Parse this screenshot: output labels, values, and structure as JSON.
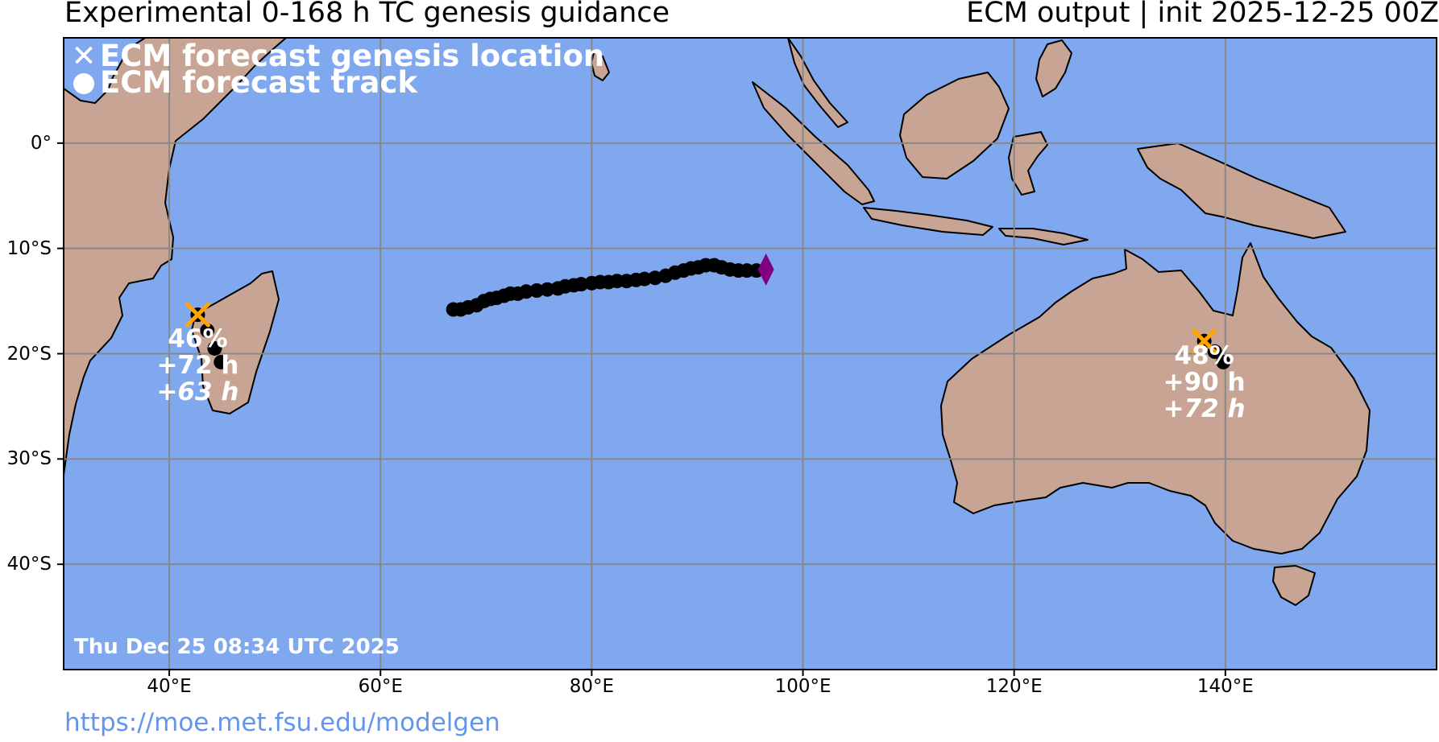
{
  "header": {
    "title_left": "Experimental 0-168 h TC genesis guidance",
    "title_right": "ECM output | init 2025-12-25 00Z"
  },
  "legend": {
    "genesis_label": "ECM forecast genesis location",
    "genesis_icon": "x-mark-icon",
    "track_label": "ECM forecast track",
    "track_icon": "circle-icon"
  },
  "axes": {
    "lon_range": [
      30,
      160
    ],
    "lat_range": [
      -50,
      10
    ],
    "x_ticks": [
      "40°E",
      "60°E",
      "80°E",
      "100°E",
      "120°E",
      "140°E"
    ],
    "x_tick_values": [
      40,
      60,
      80,
      100,
      120,
      140
    ],
    "y_ticks": [
      "0°",
      "10°S",
      "20°S",
      "30°S",
      "40°S"
    ],
    "y_tick_values": [
      0,
      -10,
      -20,
      -30,
      -40
    ],
    "grid": true
  },
  "colors": {
    "ocean": "#80a8ef",
    "land": "#c8a494",
    "genesis_marker": "#ffa500",
    "track": "#000000",
    "current_position": "#800080",
    "grid": "#888888"
  },
  "storms": [
    {
      "genesis": {
        "lon": 42.7,
        "lat": -16.3
      },
      "probability": "46%",
      "lead_time": "+72 h",
      "italic_time": "+63 h",
      "track": [
        [
          42.7,
          -16.3
        ],
        [
          43.6,
          -17.8
        ],
        [
          44.3,
          -19.5
        ],
        [
          44.9,
          -20.8
        ]
      ]
    },
    {
      "genesis": {
        "lon": 138.0,
        "lat": -18.8
      },
      "probability": "48%",
      "lead_time": "+90 h",
      "italic_time": "+72 h",
      "track": [
        [
          138.0,
          -18.8
        ],
        [
          139.0,
          -19.8
        ],
        [
          139.8,
          -20.8
        ]
      ]
    }
  ],
  "active_track": {
    "current_position": {
      "lon": 96.5,
      "lat": -12.0
    },
    "points": [
      [
        66.9,
        -15.8
      ],
      [
        67.6,
        -15.8
      ],
      [
        68.3,
        -15.6
      ],
      [
        69.1,
        -15.4
      ],
      [
        69.8,
        -15.0
      ],
      [
        70.4,
        -14.8
      ],
      [
        71.0,
        -14.7
      ],
      [
        71.7,
        -14.5
      ],
      [
        72.3,
        -14.3
      ],
      [
        73.0,
        -14.3
      ],
      [
        73.8,
        -14.1
      ],
      [
        74.8,
        -14.0
      ],
      [
        75.8,
        -13.9
      ],
      [
        76.8,
        -13.8
      ],
      [
        77.5,
        -13.6
      ],
      [
        78.3,
        -13.5
      ],
      [
        79.0,
        -13.4
      ],
      [
        80.0,
        -13.3
      ],
      [
        80.8,
        -13.2
      ],
      [
        81.6,
        -13.2
      ],
      [
        82.4,
        -13.1
      ],
      [
        83.3,
        -13.1
      ],
      [
        84.2,
        -13.0
      ],
      [
        85.0,
        -12.9
      ],
      [
        86.0,
        -12.8
      ],
      [
        87.0,
        -12.6
      ],
      [
        87.9,
        -12.3
      ],
      [
        88.7,
        -12.1
      ],
      [
        89.4,
        -11.9
      ],
      [
        90.1,
        -11.8
      ],
      [
        90.8,
        -11.6
      ],
      [
        91.6,
        -11.6
      ],
      [
        92.3,
        -11.8
      ],
      [
        93.1,
        -12.0
      ],
      [
        93.9,
        -12.1
      ],
      [
        94.7,
        -12.1
      ],
      [
        95.6,
        -12.1
      ]
    ]
  },
  "timestamp": "Thu Dec 25 08:34 UTC 2025",
  "url": "https://moe.met.fsu.edu/modelgen"
}
